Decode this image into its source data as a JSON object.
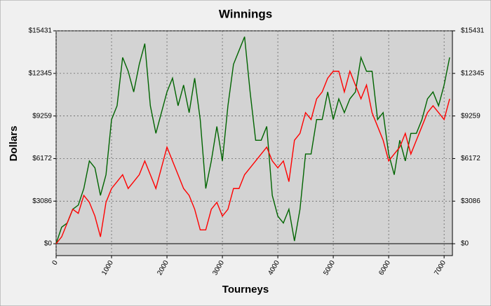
{
  "chart_data": {
    "type": "line",
    "title": "Winnings",
    "x_label": "Tourneys",
    "y_label": "Dollars",
    "x": [
      0,
      100,
      200,
      300,
      400,
      500,
      600,
      700,
      800,
      900,
      1000,
      1100,
      1200,
      1300,
      1400,
      1500,
      1600,
      1700,
      1800,
      1900,
      2000,
      2100,
      2200,
      2300,
      2400,
      2500,
      2600,
      2700,
      2800,
      2900,
      3000,
      3100,
      3200,
      3300,
      3400,
      3500,
      3600,
      3700,
      3800,
      3900,
      4000,
      4100,
      4200,
      4300,
      4400,
      4500,
      4600,
      4700,
      4800,
      4900,
      5000,
      5100,
      5200,
      5300,
      5400,
      5500,
      5600,
      5700,
      5800,
      5900,
      6000,
      6100,
      6200,
      6300,
      6400,
      6500,
      6600,
      6700,
      6800,
      6900,
      7000,
      7100
    ],
    "series": [
      {
        "name": "Green",
        "color": "#006400",
        "values": [
          0,
          1200,
          1500,
          2500,
          2800,
          4000,
          6000,
          5500,
          3500,
          5000,
          9000,
          10000,
          13500,
          12500,
          11000,
          13000,
          14500,
          10000,
          8000,
          9500,
          11000,
          12000,
          10000,
          11500,
          9500,
          12000,
          9000,
          4000,
          6000,
          8500,
          6000,
          10000,
          13000,
          14000,
          15000,
          11000,
          7500,
          7500,
          8500,
          3500,
          2000,
          1500,
          2500,
          200,
          2500,
          6500,
          6500,
          9000,
          9000,
          11000,
          9000,
          10500,
          9500,
          10500,
          11000,
          13500,
          12500,
          12500,
          9000,
          9500,
          6500,
          5000,
          7500,
          6000,
          8000,
          8000,
          9000,
          10500,
          11000,
          10000,
          11500,
          13500
        ]
      },
      {
        "name": "Red",
        "color": "#ff0000",
        "values": [
          0,
          500,
          1500,
          2500,
          2200,
          3500,
          3000,
          2000,
          500,
          3000,
          4000,
          4500,
          5000,
          4000,
          4500,
          5000,
          6000,
          5000,
          4000,
          5500,
          7000,
          6000,
          5000,
          4000,
          3500,
          2500,
          1000,
          1000,
          2500,
          3000,
          2000,
          2500,
          4000,
          4000,
          5000,
          5500,
          6000,
          6500,
          7000,
          6000,
          5500,
          6000,
          4500,
          7500,
          8000,
          9500,
          9000,
          10500,
          11000,
          12000,
          12500,
          12500,
          11000,
          12500,
          11500,
          10500,
          11500,
          9500,
          8500,
          7500,
          6000,
          6500,
          7000,
          8000,
          6500,
          7500,
          8500,
          9500,
          10000,
          9500,
          9000,
          10500
        ]
      }
    ],
    "xlim": [
      0,
      7150
    ],
    "xticks": [
      0,
      1000,
      2000,
      3000,
      4000,
      5000,
      6000,
      7000
    ],
    "ylim": [
      -860,
      15431
    ],
    "yticks": [
      {
        "value": 0,
        "label": "$0"
      },
      {
        "value": 3086,
        "label": "$3086"
      },
      {
        "value": 6172,
        "label": "$6172"
      },
      {
        "value": 9259,
        "label": "$9259"
      },
      {
        "value": 12345,
        "label": "$12345"
      },
      {
        "value": 15431,
        "label": "$15431"
      }
    ],
    "y2lim": [
      -860,
      15431
    ],
    "y2ticks": [
      {
        "value": 0,
        "label": "$0"
      },
      {
        "value": 3086,
        "label": "$3086"
      },
      {
        "value": 6172,
        "label": "$6172"
      },
      {
        "value": 9259,
        "label": "$9259"
      },
      {
        "value": 12345,
        "label": "$12345"
      },
      {
        "value": 15431,
        "label": "$15431"
      }
    ],
    "grid": true
  }
}
